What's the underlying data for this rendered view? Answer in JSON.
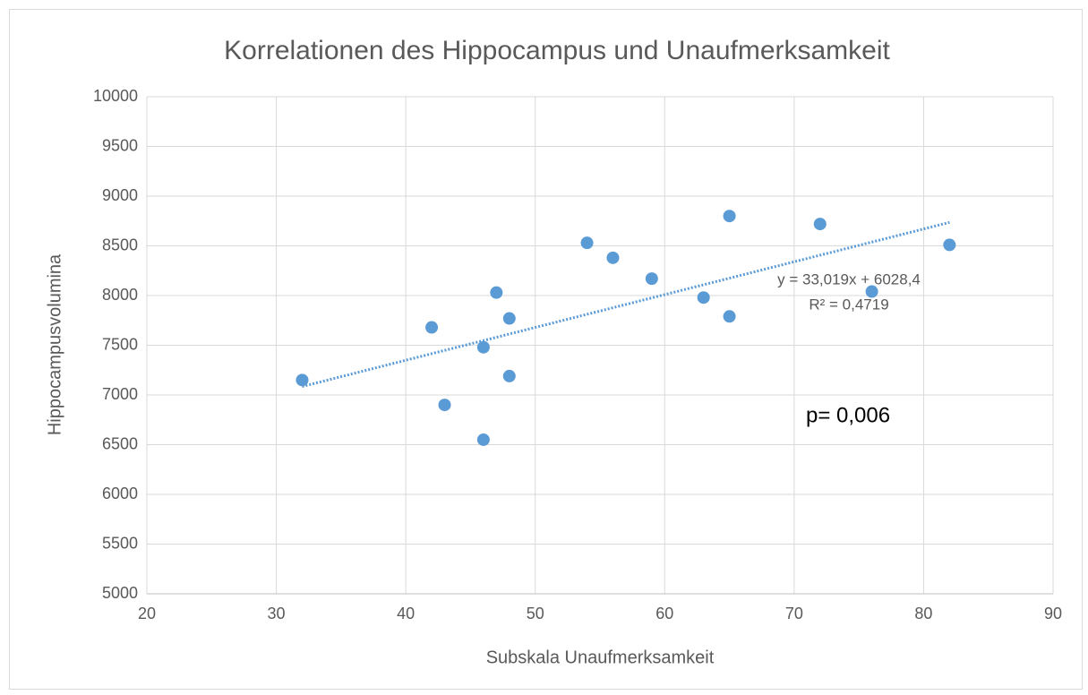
{
  "chart_data": {
    "type": "scatter",
    "title": "Korrelationen des Hippocampus und Unaufmerksamkeit",
    "xlabel": "Subskala Unaufmerksamkeit",
    "ylabel": "Hippocampusvolumina",
    "x": [
      32,
      42,
      43,
      46,
      46,
      47,
      48,
      48,
      54,
      56,
      59,
      63,
      65,
      65,
      72,
      76,
      82
    ],
    "values": [
      7150,
      7680,
      6900,
      7480,
      6550,
      8030,
      7770,
      7190,
      8530,
      8380,
      8170,
      7980,
      8800,
      7790,
      8720,
      8040,
      8510
    ],
    "color": "#5b9bd5",
    "xlim": [
      20,
      90
    ],
    "xticks": [
      20,
      30,
      40,
      50,
      60,
      70,
      80,
      90
    ],
    "ylim": [
      5000,
      10000
    ],
    "yticks": [
      5000,
      5500,
      6000,
      6500,
      7000,
      7500,
      8000,
      8500,
      9000,
      9500,
      10000
    ],
    "grid": true,
    "trendline": {
      "equation": "y = 33,019x + 6028,4",
      "r_squared": "R² = 0,4719",
      "slope": 33.019,
      "intercept": 6028.4,
      "x_range": [
        32,
        82
      ]
    },
    "annotation": "p= 0,006"
  }
}
